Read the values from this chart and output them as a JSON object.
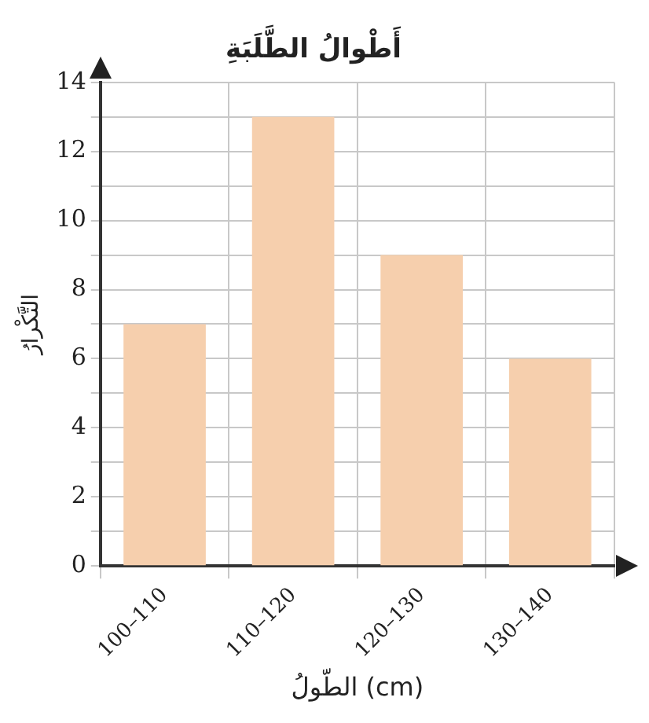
{
  "chart_data": {
    "type": "bar",
    "title": "أَطْوالُ الطَّلَبَةِ",
    "xlabel": "الطّولُ (cm)",
    "ylabel": "التَّكْرارُ",
    "categories": [
      "100–110",
      "110–120",
      "120–130",
      "130–140"
    ],
    "values": [
      7,
      13,
      9,
      6
    ],
    "color": "#f6cfad",
    "ylim": [
      0,
      14
    ],
    "yticks": [
      0,
      {
        "value": 1,
        "label": null
      },
      2,
      {
        "value": 3,
        "label": null
      },
      4,
      {
        "value": 5,
        "label": null
      },
      6,
      {
        "value": 7,
        "label": null
      },
      8,
      {
        "value": 9,
        "label": null
      },
      10,
      {
        "value": 11,
        "label": null
      },
      12,
      {
        "value": 13,
        "label": null
      },
      14
    ],
    "grid": true
  }
}
